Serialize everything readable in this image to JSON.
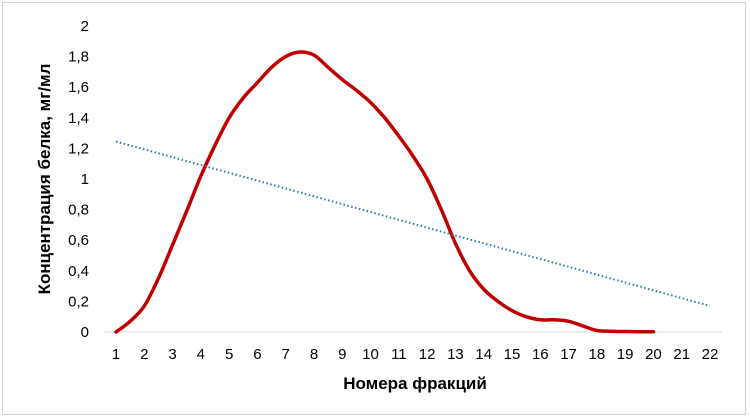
{
  "chart_data": {
    "type": "line",
    "title": "",
    "xlabel": "Номера фракций",
    "ylabel": "Концентрация белка, мг/мл",
    "x_ticks": [
      "1",
      "2",
      "3",
      "4",
      "5",
      "6",
      "7",
      "8",
      "9",
      "10",
      "11",
      "12",
      "13",
      "14",
      "15",
      "16",
      "17",
      "18",
      "19",
      "20",
      "21",
      "22"
    ],
    "y_ticks": [
      "0",
      "0,2",
      "0,4",
      "0,6",
      "0,8",
      "1",
      "1,2",
      "1,4",
      "1,6",
      "1,8",
      "2"
    ],
    "xlim": [
      1,
      22
    ],
    "ylim": [
      0,
      2
    ],
    "grid": false,
    "legend": "none",
    "series": [
      {
        "style": "solid",
        "color": "#c00000",
        "x": [
          1,
          1.5,
          2,
          2.5,
          3,
          3.5,
          4,
          4.5,
          5,
          5.5,
          6,
          6.5,
          7,
          7.5,
          8,
          8.5,
          9,
          9.5,
          10,
          10.5,
          11,
          11.5,
          12,
          12.5,
          13,
          13.5,
          14,
          14.5,
          15,
          15.5,
          16,
          16.5,
          17,
          17.5,
          18,
          18.5,
          19,
          19.5,
          20
        ],
        "y": [
          0,
          0.07,
          0.17,
          0.35,
          0.57,
          0.79,
          1.02,
          1.22,
          1.4,
          1.53,
          1.63,
          1.73,
          1.8,
          1.83,
          1.81,
          1.73,
          1.65,
          1.58,
          1.5,
          1.4,
          1.28,
          1.15,
          1.0,
          0.8,
          0.58,
          0.4,
          0.28,
          0.2,
          0.14,
          0.1,
          0.08,
          0.08,
          0.07,
          0.04,
          0.01,
          0.005,
          0.003,
          0.002,
          0.002
        ]
      },
      {
        "style": "dotted",
        "color": "#2e75b6",
        "x": [
          1,
          22
        ],
        "y": [
          1.245,
          0.17
        ]
      }
    ]
  }
}
